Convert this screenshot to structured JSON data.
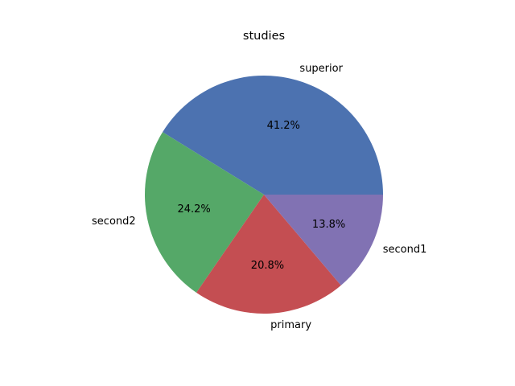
{
  "chart_data": {
    "type": "pie",
    "title": "studies",
    "slices": [
      {
        "label": "superior",
        "value": 41.2,
        "pct_label": "41.2%",
        "color": "#4c72b0"
      },
      {
        "label": "second2",
        "value": 24.2,
        "pct_label": "24.2%",
        "color": "#55a868"
      },
      {
        "label": "primary",
        "value": 20.8,
        "pct_label": "20.8%",
        "color": "#c44e52"
      },
      {
        "label": "second1",
        "value": 13.8,
        "pct_label": "13.8%",
        "color": "#8172b3"
      }
    ],
    "start_angle": "0 degrees (3 o'clock)",
    "direction": "counterclockwise",
    "legend": "none"
  }
}
